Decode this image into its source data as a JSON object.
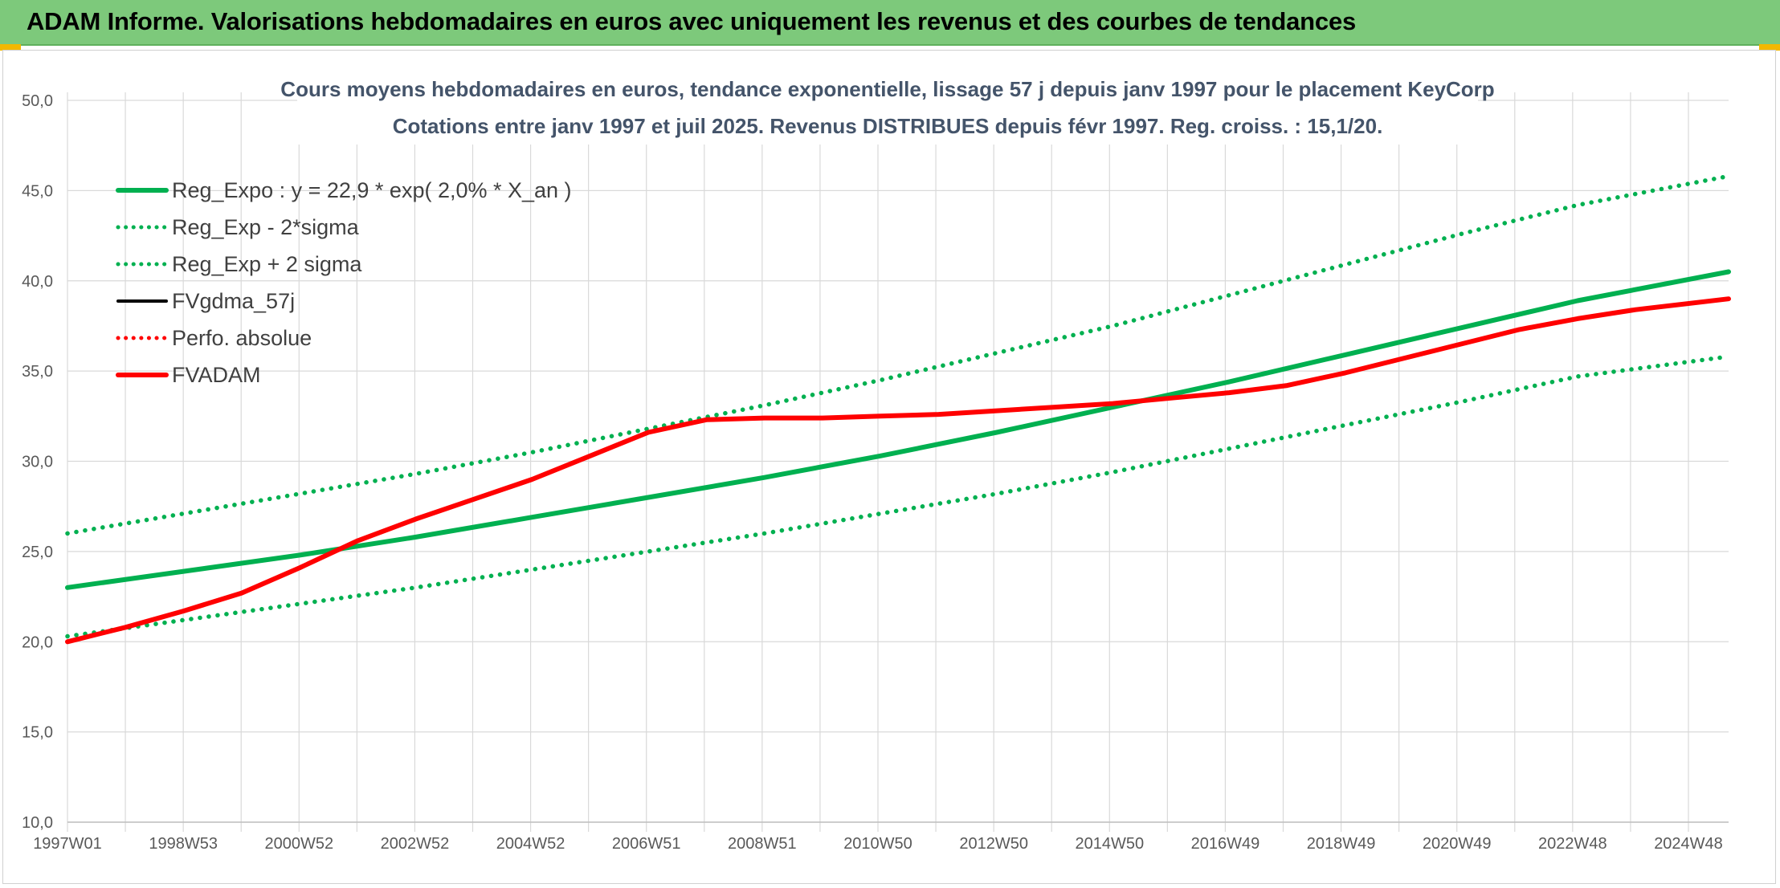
{
  "banner": {
    "title": "ADAM Informe. Valorisations hebdomadaires en euros avec uniquement les revenus et des courbes de tendances",
    "background": "#7dc97b"
  },
  "chart_data": {
    "type": "line",
    "title": "Cours moyens hebdomadaires en euros, tendance exponentielle, lissage 57 j depuis janv 1997 pour le placement KeyCorp",
    "subtitle": "Cotations entre janv 1997 et juil 2025. Revenus DISTRIBUES depuis févr 1997. Reg. croiss. : 15,1/20.",
    "xlabel": "",
    "ylabel": "",
    "ylim": [
      10,
      50
    ],
    "yticks": [
      "50,0",
      "45,0",
      "40,0",
      "35,0",
      "30,0",
      "25,0",
      "20,0",
      "15,0",
      "10,0"
    ],
    "xticks": [
      "1997W01",
      "1998W53",
      "2000W52",
      "2002W52",
      "2004W52",
      "2006W51",
      "2008W51",
      "2010W50",
      "2012W50",
      "2014W50",
      "2016W49",
      "2018W49",
      "2020W49",
      "2022W48",
      "2024W48"
    ],
    "xlim": [
      1997.0,
      2025.6
    ],
    "grid": true,
    "legend_position": "top-left",
    "series": [
      {
        "name": "Reg_Expo : y = 22,9 * exp( 2,0% *  X_an )",
        "color": "#00b050",
        "style": "solid",
        "x": [
          1997.0,
          1999.0,
          2001.0,
          2003.0,
          2005.0,
          2007.0,
          2009.0,
          2011.0,
          2013.0,
          2015.0,
          2017.0,
          2019.0,
          2021.0,
          2023.0,
          2025.6
        ],
        "y": [
          23.0,
          23.9,
          24.8,
          25.8,
          26.9,
          28.0,
          29.1,
          30.3,
          31.6,
          33.0,
          34.4,
          35.9,
          37.4,
          38.9,
          40.5
        ]
      },
      {
        "name": "Reg_Exp - 2*sigma",
        "color": "#00b050",
        "style": "dotted",
        "x": [
          1997.0,
          1999.0,
          2001.0,
          2003.0,
          2005.0,
          2007.0,
          2009.0,
          2011.0,
          2013.0,
          2015.0,
          2017.0,
          2019.0,
          2021.0,
          2023.0,
          2025.6
        ],
        "y": [
          20.3,
          21.2,
          22.1,
          23.0,
          24.0,
          25.0,
          26.0,
          27.1,
          28.2,
          29.4,
          30.7,
          32.0,
          33.3,
          34.7,
          35.8
        ]
      },
      {
        "name": "Reg_Exp + 2 sigma",
        "color": "#00b050",
        "style": "dotted",
        "x": [
          1997.0,
          1999.0,
          2001.0,
          2003.0,
          2005.0,
          2007.0,
          2009.0,
          2011.0,
          2013.0,
          2015.0,
          2017.0,
          2019.0,
          2021.0,
          2023.0,
          2025.6
        ],
        "y": [
          26.0,
          27.1,
          28.2,
          29.3,
          30.5,
          31.8,
          33.1,
          34.5,
          36.0,
          37.5,
          39.2,
          40.9,
          42.6,
          44.2,
          45.8
        ]
      },
      {
        "name": "FVgdma_57j",
        "color": "#000000",
        "style": "solid",
        "x": [],
        "y": []
      },
      {
        "name": "Perfo. absolue",
        "color": "#ff0000",
        "style": "dotted",
        "x": [],
        "y": []
      },
      {
        "name": "FVADAM",
        "color": "#ff0000",
        "style": "solid",
        "x": [
          1997.0,
          1998.0,
          1999.0,
          2000.0,
          2001.0,
          2002.0,
          2003.0,
          2004.0,
          2005.0,
          2006.0,
          2007.0,
          2008.0,
          2009.0,
          2010.0,
          2011.0,
          2012.0,
          2013.0,
          2014.0,
          2015.0,
          2016.0,
          2017.0,
          2018.0,
          2019.0,
          2020.0,
          2021.0,
          2022.0,
          2023.0,
          2024.0,
          2025.6
        ],
        "y": [
          20.0,
          20.8,
          21.7,
          22.7,
          24.1,
          25.6,
          26.8,
          27.9,
          29.0,
          30.3,
          31.6,
          32.3,
          32.4,
          32.4,
          32.5,
          32.6,
          32.8,
          33.0,
          33.2,
          33.5,
          33.8,
          34.2,
          34.9,
          35.7,
          36.5,
          37.3,
          37.9,
          38.4,
          39.0
        ]
      }
    ]
  }
}
